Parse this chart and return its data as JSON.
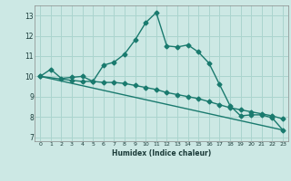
{
  "xlabel": "Humidex (Indice chaleur)",
  "ylabel": "",
  "background_color": "#cce8e4",
  "grid_color": "#aad4ce",
  "line_color": "#1a7a6e",
  "xlim": [
    -0.5,
    23.5
  ],
  "ylim": [
    6.8,
    13.5
  ],
  "yticks": [
    7,
    8,
    9,
    10,
    11,
    12,
    13
  ],
  "xticks": [
    0,
    1,
    2,
    3,
    4,
    5,
    6,
    7,
    8,
    9,
    10,
    11,
    12,
    13,
    14,
    15,
    16,
    17,
    18,
    19,
    20,
    21,
    22,
    23
  ],
  "series1_x": [
    0,
    1,
    2,
    3,
    4,
    5,
    6,
    7,
    8,
    9,
    10,
    11,
    12,
    13,
    14,
    15,
    16,
    17,
    18,
    19,
    20,
    21,
    22,
    23
  ],
  "series1_y": [
    10.0,
    10.35,
    9.9,
    9.95,
    10.0,
    9.75,
    10.55,
    10.7,
    11.1,
    11.8,
    12.65,
    13.15,
    11.5,
    11.45,
    11.55,
    11.2,
    10.65,
    9.6,
    8.55,
    8.05,
    8.1,
    8.1,
    7.95,
    7.35
  ],
  "series2_x": [
    0,
    3,
    4,
    5,
    6,
    7,
    8,
    9,
    10,
    11,
    12,
    13,
    14,
    15,
    16,
    17,
    18,
    19,
    20,
    21,
    22,
    23
  ],
  "series2_y": [
    10.0,
    9.8,
    9.75,
    9.75,
    9.7,
    9.7,
    9.65,
    9.55,
    9.45,
    9.35,
    9.2,
    9.1,
    9.0,
    8.9,
    8.75,
    8.6,
    8.45,
    8.35,
    8.25,
    8.15,
    8.05,
    7.9
  ],
  "series3_x": [
    0,
    23
  ],
  "series3_y": [
    10.0,
    7.35
  ],
  "marker_size": 2.5,
  "line_width": 1.0
}
